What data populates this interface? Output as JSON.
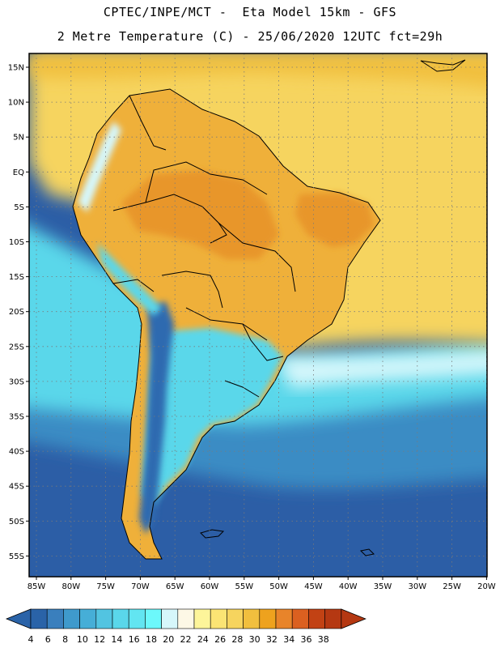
{
  "header": {
    "title_line1": "CPTEC/INPE/MCT -  Eta Model 15km - GFS",
    "title_line2": "2 Metre Temperature (C) - 25/06/2020 12UTC fct=29h"
  },
  "map": {
    "lat_labels": [
      "15N",
      "10N",
      "5N",
      "EQ",
      "5S",
      "10S",
      "15S",
      "20S",
      "25S",
      "30S",
      "35S",
      "40S",
      "45S",
      "50S",
      "55S"
    ],
    "lon_labels": [
      "85W",
      "80W",
      "75W",
      "70W",
      "65W",
      "60W",
      "55W",
      "50W",
      "45W",
      "40W",
      "35W",
      "30W",
      "25W",
      "20W"
    ]
  },
  "colorbar": {
    "labels": [
      "4",
      "6",
      "8",
      "10",
      "12",
      "14",
      "16",
      "18",
      "20",
      "22",
      "24",
      "26",
      "28",
      "30",
      "32",
      "34",
      "36",
      "38"
    ],
    "colors": [
      "#2a63a8",
      "#3a7fbd",
      "#3f9acc",
      "#46aed7",
      "#52c4e1",
      "#5ad7ea",
      "#62e5f1",
      "#6cf8fb",
      "#d6f7fb",
      "#fdf8e6",
      "#fdf59a",
      "#fbe474",
      "#f6d45e",
      "#f1bf3e",
      "#eea21e",
      "#e8842a",
      "#db6020",
      "#c24214",
      "#b53812"
    ],
    "under_color": "#2a63a8",
    "over_color": "#b53812"
  },
  "colors": {
    "ocean_deep": "#2c5ea6",
    "ocean_mid": "#3b8cc4",
    "ocean_cyan": "#5ad7ea",
    "tropical_yellow": "#f6d45e",
    "land_warm": "#efb03a",
    "land_hot": "#e8962c",
    "andes_cold": "#2f6bb0",
    "border": "#000000"
  }
}
